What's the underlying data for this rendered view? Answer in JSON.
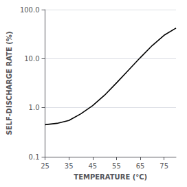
{
  "chart_data": {
    "type": "line",
    "x": [
      25,
      30,
      35,
      40,
      45,
      50,
      55,
      60,
      65,
      70,
      75,
      80
    ],
    "values": [
      0.45,
      0.48,
      0.55,
      0.75,
      1.1,
      1.8,
      3.2,
      5.8,
      10.5,
      18.5,
      30.0,
      42.0
    ],
    "color": "#000000",
    "xlabel": "TEMPERATURE (°C)",
    "ylabel": "SELF-DISCHARGE RATE (%)",
    "xlim": [
      25,
      80
    ],
    "ylim": [
      0.1,
      100.0
    ],
    "xticks": [
      25,
      35,
      45,
      55,
      65,
      75
    ],
    "yticks": [
      0.1,
      {
        "value": 1.0,
        "label": "1.0"
      },
      {
        "value": 10.0,
        "label": "10.0"
      },
      {
        "value": 100.0,
        "label": "100.0"
      }
    ],
    "log": "y",
    "grid": "y"
  }
}
